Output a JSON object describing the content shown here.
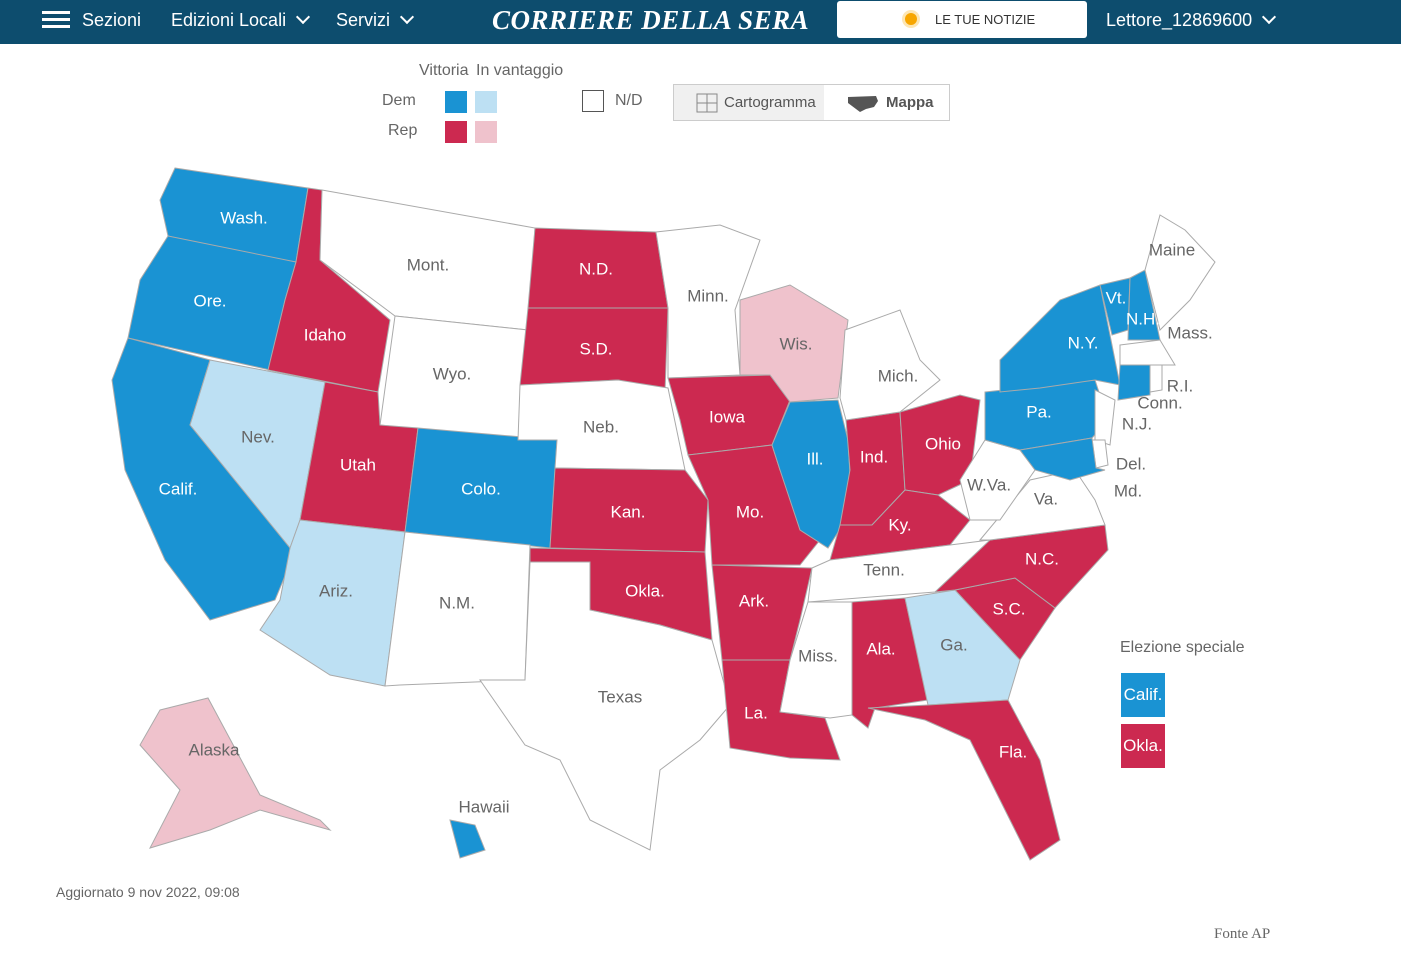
{
  "header": {
    "menu": "Sezioni",
    "nav": [
      "Edizioni Locali",
      "Servizi"
    ],
    "logo": "CORRIERE DELLA SERA",
    "news_button": "LE TUE NOTIZIE",
    "user": "Lettore_12869600"
  },
  "legend": {
    "col_victory": "Vittoria",
    "col_lead": "In vantaggio",
    "rows": [
      {
        "name": "Dem",
        "victory_color": "#1a93d3",
        "lead_color": "#bde0f3"
      },
      {
        "name": "Rep",
        "victory_color": "#cc2950",
        "lead_color": "#efc2cc"
      }
    ],
    "nd": {
      "label": "N/D",
      "color": "#ffffff"
    }
  },
  "toggle": {
    "options": [
      "Cartogramma",
      "Mappa"
    ],
    "active": 1
  },
  "map": {
    "states": [
      {
        "label": "Wash.",
        "color": "#1a93d3"
      },
      {
        "label": "Ore.",
        "color": "#1a93d3"
      },
      {
        "label": "Calif.",
        "color": "#1a93d3"
      },
      {
        "label": "Nev.",
        "color": "#bde0f3"
      },
      {
        "label": "Idaho",
        "color": "#cc2950"
      },
      {
        "label": "Mont.",
        "color": "#ffffff"
      },
      {
        "label": "Wyo.",
        "color": "#ffffff"
      },
      {
        "label": "Utah",
        "color": "#cc2950"
      },
      {
        "label": "Colo.",
        "color": "#1a93d3"
      },
      {
        "label": "Ariz.",
        "color": "#bde0f3"
      },
      {
        "label": "N.M.",
        "color": "#ffffff"
      },
      {
        "label": "N.D.",
        "color": "#cc2950"
      },
      {
        "label": "S.D.",
        "color": "#cc2950"
      },
      {
        "label": "Neb.",
        "color": "#ffffff"
      },
      {
        "label": "Kan.",
        "color": "#cc2950"
      },
      {
        "label": "Okla.",
        "color": "#cc2950"
      },
      {
        "label": "Texas",
        "color": "#ffffff"
      },
      {
        "label": "Minn.",
        "color": "#ffffff"
      },
      {
        "label": "Iowa",
        "color": "#cc2950"
      },
      {
        "label": "Mo.",
        "color": "#cc2950"
      },
      {
        "label": "Ark.",
        "color": "#cc2950"
      },
      {
        "label": "La.",
        "color": "#cc2950"
      },
      {
        "label": "Wis.",
        "color": "#efc2cc"
      },
      {
        "label": "Ill.",
        "color": "#1a93d3"
      },
      {
        "label": "Ind.",
        "color": "#cc2950"
      },
      {
        "label": "Ohio",
        "color": "#cc2950"
      },
      {
        "label": "Mich.",
        "color": "#ffffff"
      },
      {
        "label": "Ky.",
        "color": "#cc2950"
      },
      {
        "label": "Tenn.",
        "color": "#ffffff"
      },
      {
        "label": "Miss.",
        "color": "#ffffff"
      },
      {
        "label": "Ala.",
        "color": "#cc2950"
      },
      {
        "label": "Ga.",
        "color": "#bde0f3"
      },
      {
        "label": "Fla.",
        "color": "#cc2950"
      },
      {
        "label": "S.C.",
        "color": "#cc2950"
      },
      {
        "label": "N.C.",
        "color": "#cc2950"
      },
      {
        "label": "Va.",
        "color": "#ffffff"
      },
      {
        "label": "W.Va.",
        "color": "#ffffff"
      },
      {
        "label": "Pa.",
        "color": "#1a93d3"
      },
      {
        "label": "N.Y.",
        "color": "#1a93d3"
      },
      {
        "label": "Vt.",
        "color": "#1a93d3"
      },
      {
        "label": "N.H.",
        "color": "#1a93d3"
      },
      {
        "label": "Maine",
        "color": "#ffffff"
      },
      {
        "label": "Mass.",
        "color": "#ffffff"
      },
      {
        "label": "Conn.",
        "color": "#1a93d3"
      },
      {
        "label": "R.I.",
        "color": "#ffffff"
      },
      {
        "label": "N.J.",
        "color": "#ffffff"
      },
      {
        "label": "Del.",
        "color": "#ffffff"
      },
      {
        "label": "Md.",
        "color": "#1a93d3"
      },
      {
        "label": "Alaska",
        "color": "#efc2cc"
      },
      {
        "label": "Hawaii",
        "color": "#1a93d3"
      }
    ]
  },
  "special_election": {
    "title": "Elezione speciale",
    "states": [
      {
        "label": "Calif.",
        "color": "#1a93d3"
      },
      {
        "label": "Okla.",
        "color": "#cc2950"
      }
    ]
  },
  "updated": "Aggiornato 9 nov 2022, 09:08",
  "source": "Fonte AP"
}
